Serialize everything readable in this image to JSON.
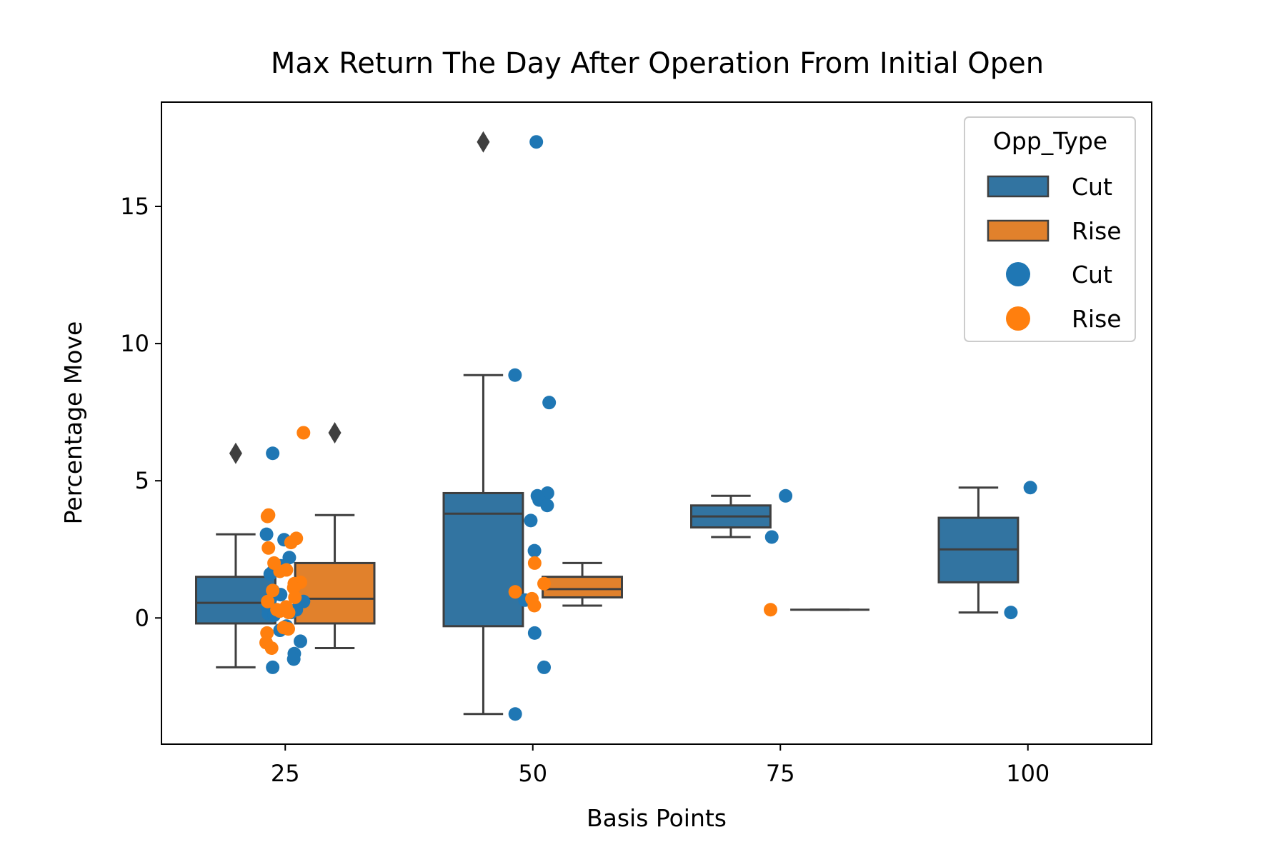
{
  "chart_data": {
    "type": "box",
    "title": "Max Return The Day After Operation From Initial Open",
    "xlabel": "Basis Points",
    "ylabel": "Percentage Move",
    "categories": [
      "25",
      "50",
      "75",
      "100"
    ],
    "ylim": [
      -4.6,
      18.8
    ],
    "yticks": [
      "0",
      "5",
      "10",
      "15"
    ],
    "grid": false,
    "legend": {
      "title": "Opp_Type",
      "position": "top-right",
      "entries": [
        {
          "label": "Cut",
          "kind": "box",
          "series": "Cut"
        },
        {
          "label": "Rise",
          "kind": "box",
          "series": "Rise"
        },
        {
          "label": "Cut",
          "kind": "point",
          "series": "Cut"
        },
        {
          "label": "Rise",
          "kind": "point",
          "series": "Rise"
        }
      ]
    },
    "series": [
      {
        "name": "Cut",
        "box_color": "#3274a1",
        "point_color": "#1f77b4",
        "boxes": [
          {
            "category": "25",
            "whisker_low": -1.8,
            "q1": -0.2,
            "median": 0.55,
            "q3": 1.5,
            "whisker_high": 3.05,
            "outliers": [
              6.0
            ]
          },
          {
            "category": "50",
            "whisker_low": -3.5,
            "q1": -0.3,
            "median": 3.8,
            "q3": 4.55,
            "whisker_high": 8.85,
            "outliers": [
              17.35
            ]
          },
          {
            "category": "75",
            "whisker_low": 2.95,
            "q1": 3.3,
            "median": 3.7,
            "q3": 4.1,
            "whisker_high": 4.45,
            "outliers": []
          },
          {
            "category": "100",
            "whisker_low": 0.2,
            "q1": 1.3,
            "median": 2.5,
            "q3": 3.65,
            "whisker_high": 4.75,
            "outliers": []
          }
        ],
        "points": [
          {
            "category": "25",
            "values": [
              6.0,
              3.05,
              2.85,
              2.2,
              1.9,
              1.7,
              1.6,
              1.0,
              0.85,
              0.7,
              0.6,
              0.5,
              0.4,
              0.3,
              0.2,
              0.15,
              0.1,
              -0.3,
              -0.45,
              -0.85,
              -1.3,
              -1.5,
              -1.8
            ]
          },
          {
            "category": "50",
            "values": [
              17.35,
              8.85,
              7.85,
              4.55,
              4.45,
              4.3,
              4.1,
              3.55,
              2.45,
              0.65,
              -0.55,
              -1.8,
              -3.5
            ]
          },
          {
            "category": "75",
            "values": [
              4.45,
              2.95
            ]
          },
          {
            "category": "100",
            "values": [
              4.75,
              0.2
            ]
          }
        ]
      },
      {
        "name": "Rise",
        "box_color": "#e1812c",
        "point_color": "#ff7f0e",
        "boxes": [
          {
            "category": "25",
            "whisker_low": -1.1,
            "q1": -0.2,
            "median": 0.7,
            "q3": 2.0,
            "whisker_high": 3.75,
            "outliers": [
              6.75
            ]
          },
          {
            "category": "50",
            "whisker_low": 0.45,
            "q1": 0.75,
            "median": 1.05,
            "q3": 1.5,
            "whisker_high": 2.0,
            "outliers": []
          },
          {
            "category": "75",
            "whisker_low": 0.3,
            "q1": 0.3,
            "median": 0.3,
            "q3": 0.3,
            "whisker_high": 0.3,
            "outliers": []
          }
        ],
        "points": [
          {
            "category": "25",
            "values": [
              6.75,
              3.75,
              3.7,
              2.9,
              2.75,
              2.55,
              2.0,
              1.75,
              1.7,
              1.3,
              1.25,
              1.1,
              1.0,
              0.75,
              0.6,
              0.4,
              0.3,
              0.25,
              0.2,
              -0.35,
              -0.4,
              -0.55,
              -0.9,
              -1.1
            ]
          },
          {
            "category": "50",
            "values": [
              2.0,
              1.25,
              0.95,
              0.7,
              0.45
            ]
          },
          {
            "category": "75",
            "values": [
              0.3
            ]
          }
        ]
      }
    ]
  }
}
